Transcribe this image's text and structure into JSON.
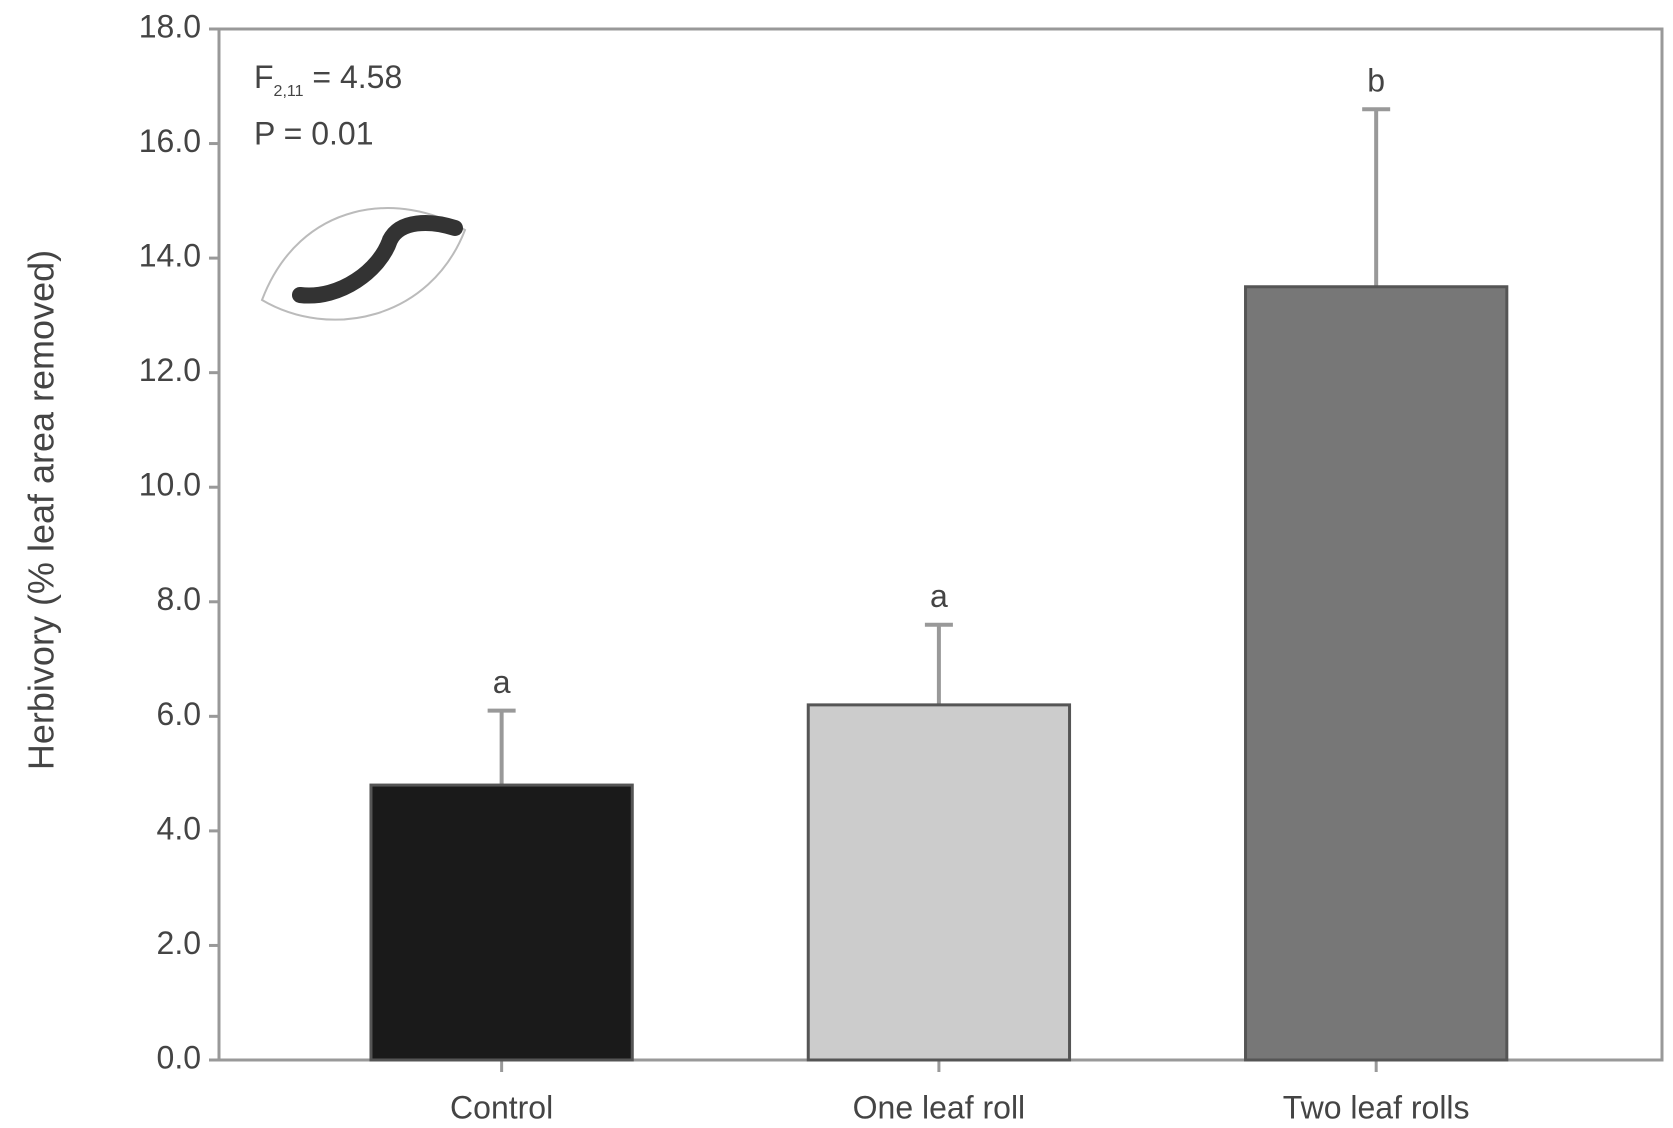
{
  "chart_data": {
    "type": "bar",
    "y_label": "Herbivory (% leaf area removed)",
    "categories": [
      "Control",
      "One leaf roll",
      "Two leaf rolls"
    ],
    "values": [
      4.8,
      6.2,
      13.5
    ],
    "errors": [
      1.3,
      1.4,
      3.1
    ],
    "colors": [
      "#1a1a1a",
      "#cccccc",
      "#777777"
    ],
    "group_letters": [
      "a",
      "a",
      "b"
    ],
    "ylim": [
      0,
      18
    ],
    "yticks": [
      {
        "value": 0,
        "label": "0.0"
      },
      {
        "value": 2,
        "label": "2.0"
      },
      {
        "value": 4,
        "label": "4.0"
      },
      {
        "value": 6,
        "label": "6.0"
      },
      {
        "value": 8,
        "label": "8.0"
      },
      {
        "value": 10,
        "label": "10.0"
      },
      {
        "value": 12,
        "label": "12.0"
      },
      {
        "value": 14,
        "label": "14.0"
      },
      {
        "value": 16,
        "label": "16.0"
      },
      {
        "value": 18,
        "label": "18.0"
      }
    ],
    "annotations": [
      {
        "symbol": "F",
        "subscript": "2,11",
        "rest": " = 4.58"
      },
      "P = 0.01"
    ]
  }
}
